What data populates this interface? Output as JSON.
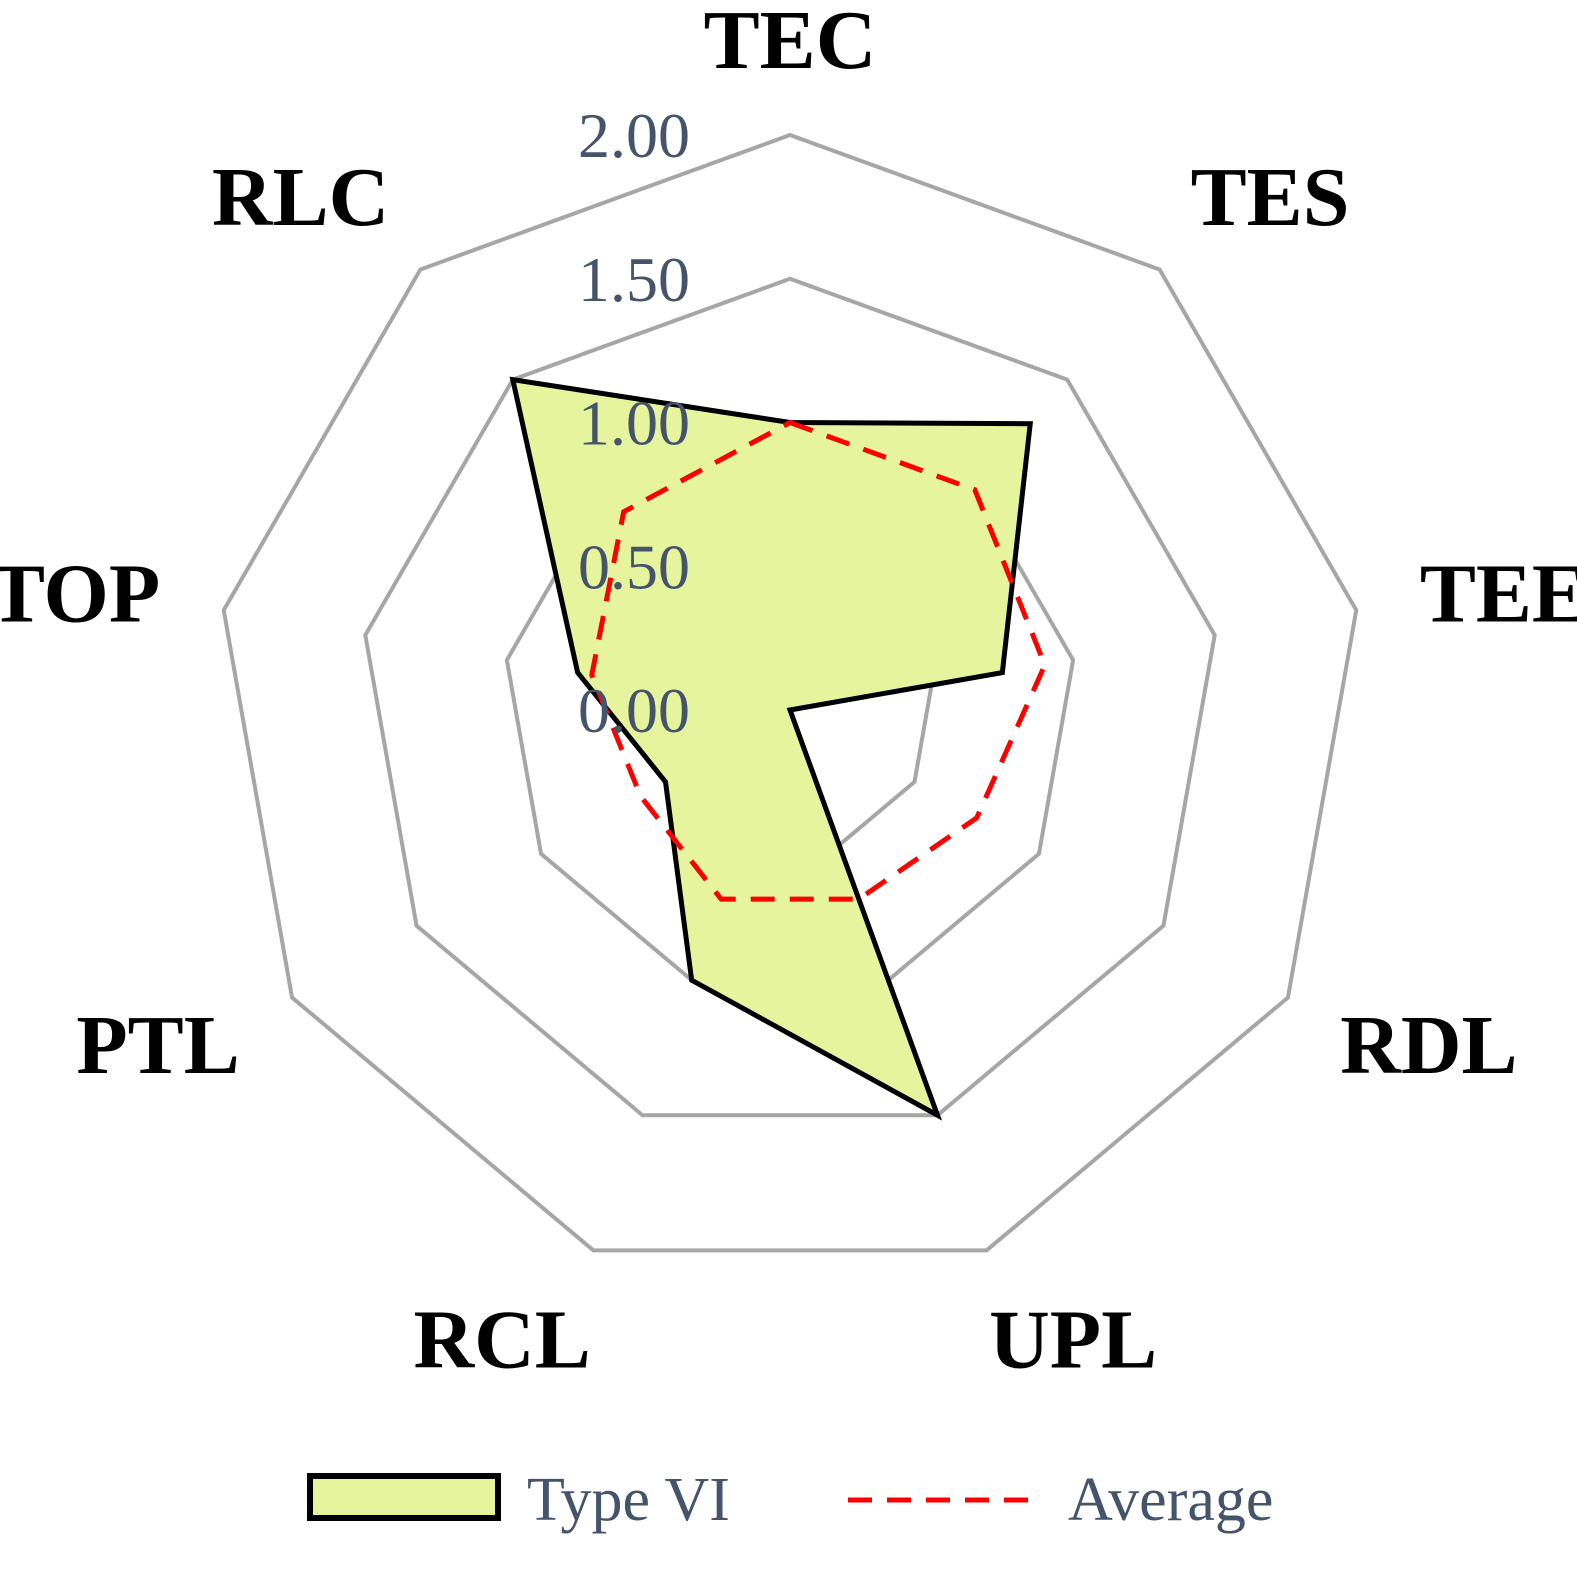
{
  "chart_data": {
    "type": "radar",
    "title": "",
    "axes": [
      "TEC",
      "TES",
      "TEE",
      "RDL",
      "UPL",
      "RCL",
      "PTL",
      "TOP",
      "RLC"
    ],
    "ticks": [
      "0.00",
      "0.50",
      "1.00",
      "1.50",
      "2.00"
    ],
    "rlim": [
      0,
      2
    ],
    "grid": true,
    "legend_position": "bottom",
    "series": [
      {
        "name": "Type VI",
        "values": [
          1.0,
          1.3,
          0.75,
          0.0,
          1.5,
          1.0,
          0.5,
          0.75,
          1.5
        ],
        "fill": "#e6f59d",
        "stroke": "#000000",
        "style": "solid"
      },
      {
        "name": "Average",
        "values": [
          1.0,
          1.0,
          0.9,
          0.75,
          0.7,
          0.7,
          0.6,
          0.7,
          0.9
        ],
        "stroke": "#ff0000",
        "style": "dashed"
      }
    ],
    "colors": {
      "grid": "#a6a6a6",
      "tick_text": "#44546a",
      "axis_text": "#000000",
      "legend_text": "#44546a"
    }
  }
}
